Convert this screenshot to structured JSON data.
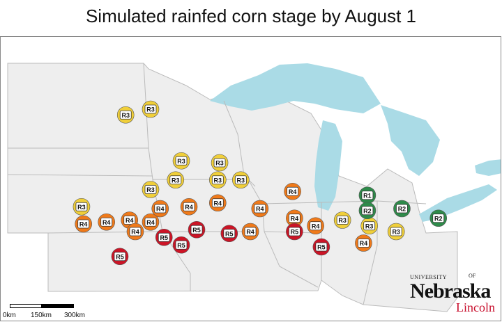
{
  "title": "Simulated rainfed corn stage by August 1",
  "colors": {
    "land": "#eeeeee",
    "border": "#bbbbbb",
    "water": "#aadbe6",
    "R1": "#2e8b4a",
    "R2": "#2e8b4a",
    "R3": "#f0cf3a",
    "R4": "#f07a1a",
    "R5": "#cc1426"
  },
  "stations": [
    {
      "label": "R3",
      "lon": -97.9,
      "lat": 46.3
    },
    {
      "label": "R3",
      "lon": -96.6,
      "lat": 46.6
    },
    {
      "label": "R3",
      "lon": -95.0,
      "lat": 43.9
    },
    {
      "label": "R3",
      "lon": -93.0,
      "lat": 43.8
    },
    {
      "label": "R3",
      "lon": -95.3,
      "lat": 42.9
    },
    {
      "label": "R3",
      "lon": -93.1,
      "lat": 42.9
    },
    {
      "label": "R3",
      "lon": -91.9,
      "lat": 42.9
    },
    {
      "label": "R3",
      "lon": -96.6,
      "lat": 42.4
    },
    {
      "label": "R3",
      "lon": -100.2,
      "lat": 41.5
    },
    {
      "label": "R4",
      "lon": -100.1,
      "lat": 40.6
    },
    {
      "label": "R4",
      "lon": -98.9,
      "lat": 40.7
    },
    {
      "label": "R4",
      "lon": -97.7,
      "lat": 40.8
    },
    {
      "label": "R4",
      "lon": -96.6,
      "lat": 40.7
    },
    {
      "label": "R4",
      "lon": -96.1,
      "lat": 41.4
    },
    {
      "label": "R4",
      "lon": -94.6,
      "lat": 41.5
    },
    {
      "label": "R4",
      "lon": -93.1,
      "lat": 41.7
    },
    {
      "label": "R4",
      "lon": -97.4,
      "lat": 40.2
    },
    {
      "label": "R4",
      "lon": -90.9,
      "lat": 41.4
    },
    {
      "label": "R4",
      "lon": -89.2,
      "lat": 42.3
    },
    {
      "label": "R4",
      "lon": -89.1,
      "lat": 40.9
    },
    {
      "label": "R4",
      "lon": -88.0,
      "lat": 40.5
    },
    {
      "label": "R4",
      "lon": -91.4,
      "lat": 40.2
    },
    {
      "label": "R4",
      "lon": -85.5,
      "lat": 39.6
    },
    {
      "label": "R5",
      "lon": -94.2,
      "lat": 40.3
    },
    {
      "label": "R5",
      "lon": -95.9,
      "lat": 39.9
    },
    {
      "label": "R5",
      "lon": -95.0,
      "lat": 39.5
    },
    {
      "label": "R5",
      "lon": -92.5,
      "lat": 40.1
    },
    {
      "label": "R5",
      "lon": -98.2,
      "lat": 38.9
    },
    {
      "label": "R5",
      "lon": -89.1,
      "lat": 40.2
    },
    {
      "label": "R5",
      "lon": -87.7,
      "lat": 39.4
    },
    {
      "label": "R3",
      "lon": -86.6,
      "lat": 40.8
    },
    {
      "label": "R3",
      "lon": -85.2,
      "lat": 40.5
    },
    {
      "label": "R3",
      "lon": -83.8,
      "lat": 40.2
    },
    {
      "label": "R1",
      "lon": -85.3,
      "lat": 42.1
    },
    {
      "label": "R2",
      "lon": -85.3,
      "lat": 41.3
    },
    {
      "label": "R2",
      "lon": -83.5,
      "lat": 41.4
    },
    {
      "label": "R2",
      "lon": -81.6,
      "lat": 40.9
    }
  ],
  "scale": {
    "labels": [
      "0km",
      "150km",
      "300km"
    ]
  },
  "logo": {
    "university": "UNIVERSITY",
    "of": "OF",
    "name": "Nebraska",
    "campus": "Lincoln"
  }
}
